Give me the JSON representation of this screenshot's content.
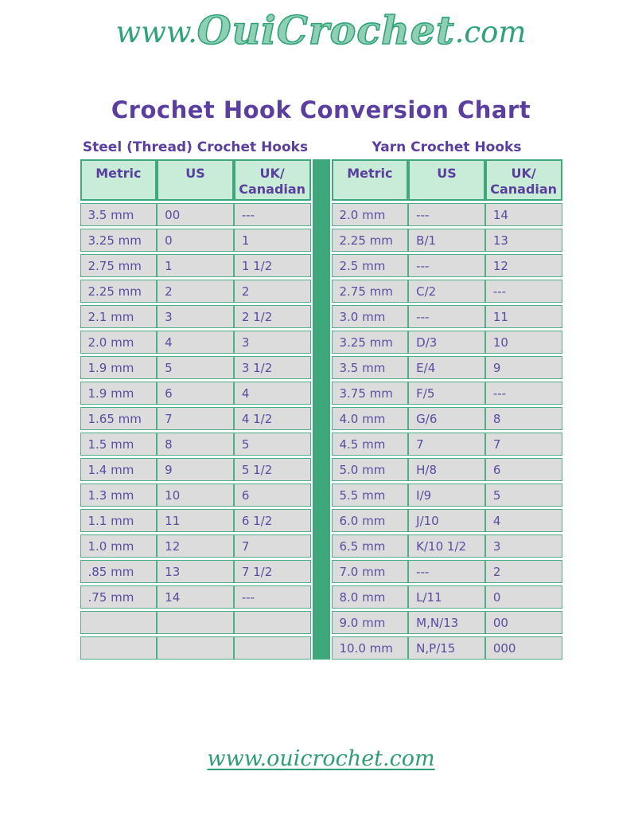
{
  "logo": {
    "prefix": "www.",
    "brand": "OuiCrochet",
    "suffix": ".com"
  },
  "title": "Crochet Hook Conversion Chart",
  "colors": {
    "accent_green": "#3ea87c",
    "border_green": "#4fae85",
    "header_cell_bg": "#c9ecd9",
    "data_cell_bg": "#dcdcdc",
    "cell_text_purple": "#5c4ba1",
    "heading_purple": "#5a3f9e",
    "title_purple": "#5b3fa0",
    "logo_green": "#2fa279",
    "footer_green": "#2f9e74"
  },
  "tables": [
    {
      "heading": "Steel (Thread) Crochet Hooks",
      "columns": [
        {
          "lines": [
            "Metric"
          ]
        },
        {
          "lines": [
            "US"
          ]
        },
        {
          "lines": [
            "UK/",
            "Canadian"
          ]
        }
      ],
      "rows": [
        [
          "3.5 mm",
          "00",
          "---"
        ],
        [
          "3.25 mm",
          "0",
          "1"
        ],
        [
          "2.75 mm",
          "1",
          "1 1/2"
        ],
        [
          "2.25 mm",
          "2",
          "2"
        ],
        [
          "2.1 mm",
          "3",
          "2 1/2"
        ],
        [
          "2.0 mm",
          "4",
          "3"
        ],
        [
          "1.9 mm",
          "5",
          "3 1/2"
        ],
        [
          "1.9 mm",
          "6",
          "4"
        ],
        [
          "1.65 mm",
          "7",
          "4 1/2"
        ],
        [
          "1.5 mm",
          "8",
          "5"
        ],
        [
          "1.4 mm",
          "9",
          "5 1/2"
        ],
        [
          "1.3 mm",
          "10",
          "6"
        ],
        [
          "1.1 mm",
          "11",
          "6 1/2"
        ],
        [
          "1.0 mm",
          "12",
          "7"
        ],
        [
          ".85 mm",
          "13",
          "7 1/2"
        ],
        [
          ".75 mm",
          "14",
          "---"
        ],
        [
          "",
          "",
          ""
        ],
        [
          "",
          "",
          ""
        ]
      ]
    },
    {
      "heading": "Yarn Crochet Hooks",
      "columns": [
        {
          "lines": [
            "Metric"
          ]
        },
        {
          "lines": [
            "US"
          ]
        },
        {
          "lines": [
            "UK/",
            "Canadian"
          ]
        }
      ],
      "rows": [
        [
          "2.0 mm",
          "---",
          "14"
        ],
        [
          "2.25 mm",
          "B/1",
          "13"
        ],
        [
          "2.5 mm",
          "---",
          "12"
        ],
        [
          "2.75 mm",
          "C/2",
          "---"
        ],
        [
          "3.0 mm",
          "---",
          "11"
        ],
        [
          "3.25 mm",
          "D/3",
          "10"
        ],
        [
          "3.5 mm",
          "E/4",
          "9"
        ],
        [
          "3.75 mm",
          "F/5",
          "---"
        ],
        [
          "4.0 mm",
          "G/6",
          "8"
        ],
        [
          "4.5 mm",
          "7",
          "7"
        ],
        [
          "5.0 mm",
          "H/8",
          "6"
        ],
        [
          "5.5 mm",
          "I/9",
          "5"
        ],
        [
          "6.0 mm",
          "J/10",
          "4"
        ],
        [
          "6.5 mm",
          "K/10 1/2",
          "3"
        ],
        [
          "7.0 mm",
          "---",
          "2"
        ],
        [
          "8.0 mm",
          "L/11",
          "0"
        ],
        [
          "9.0 mm",
          "M,N/13",
          "00"
        ],
        [
          "10.0 mm",
          "N,P/15",
          "000"
        ]
      ]
    }
  ],
  "footer": {
    "link_text": "www.ouicrochet.com"
  }
}
